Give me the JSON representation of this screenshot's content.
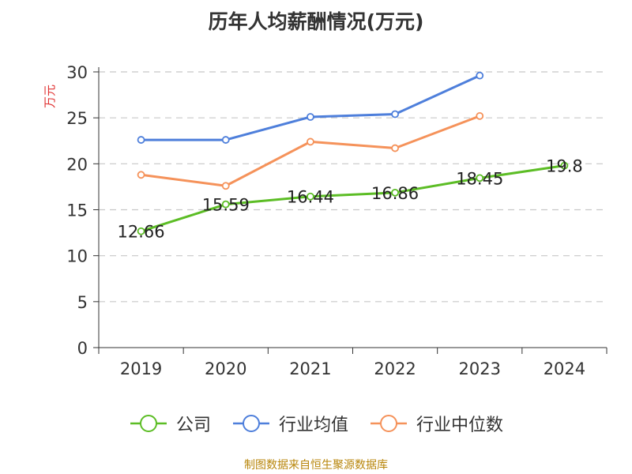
{
  "page": {
    "title": "历年人均薪酬情况(万元)",
    "source": "制图数据来自恒生聚源数据库"
  },
  "chart_data": {
    "type": "line",
    "title": "历年人均薪酬情况(万元)",
    "xlabel": "",
    "ylabel": "万元",
    "categories": [
      "2019",
      "2020",
      "2021",
      "2022",
      "2023",
      "2024"
    ],
    "ylim": [
      0,
      30
    ],
    "yticks": [
      0,
      5,
      10,
      15,
      20,
      25,
      30
    ],
    "grid": true,
    "legend_position": "bottom",
    "series": [
      {
        "name": "公司",
        "color": "#5cbd25",
        "values": [
          12.66,
          15.59,
          16.44,
          16.86,
          18.45,
          19.8
        ],
        "labels": [
          "12.66",
          "15.59",
          "16.44",
          "16.86",
          "18.45",
          "19.8"
        ]
      },
      {
        "name": "行业均值",
        "color": "#4e7fdb",
        "values": [
          22.6,
          22.6,
          25.1,
          25.4,
          29.6,
          null
        ],
        "labels": null
      },
      {
        "name": "行业中位数",
        "color": "#f5925a",
        "values": [
          18.8,
          17.6,
          22.4,
          21.7,
          25.2,
          null
        ],
        "labels": null
      }
    ]
  }
}
